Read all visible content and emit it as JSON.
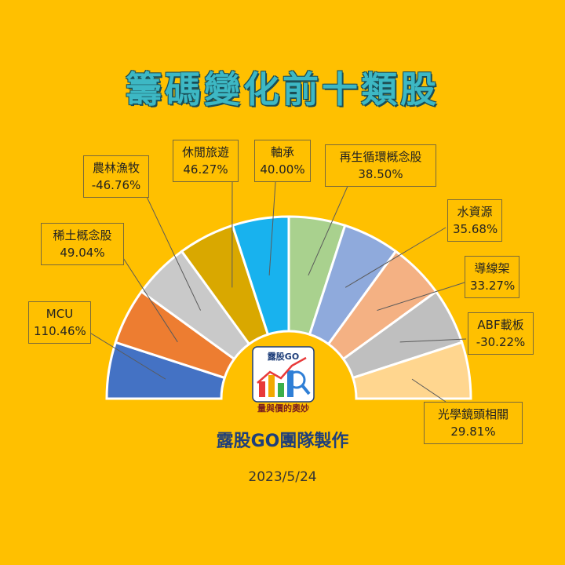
{
  "title": "籌碼變化前十類股",
  "maker": "露股GO團隊製作",
  "date": "2023/5/24",
  "logo": {
    "name_text": "露股GO",
    "slogan_text": "量與價的奧妙"
  },
  "chart_data": {
    "type": "pie",
    "title": "籌碼變化前十類股",
    "categories": [
      "MCU",
      "稀土概念股",
      "農林漁牧",
      "休閒旅遊",
      "軸承",
      "再生循環概念股",
      "水資源",
      "導線架",
      "ABF載板",
      "光學鏡頭相關"
    ],
    "values": [
      "110.46%",
      "49.04%",
      "-46.76%",
      "46.27%",
      "40.00%",
      "38.50%",
      "35.68%",
      "33.27%",
      "-30.22%",
      "29.81%"
    ],
    "colors": [
      "#4472C4",
      "#ED7D31",
      "#C9C9C9",
      "#D9A800",
      "#18B2EE",
      "#A9D18E",
      "#8FAADC",
      "#F4B183",
      "#BFBFBF",
      "#FFD68F"
    ]
  }
}
